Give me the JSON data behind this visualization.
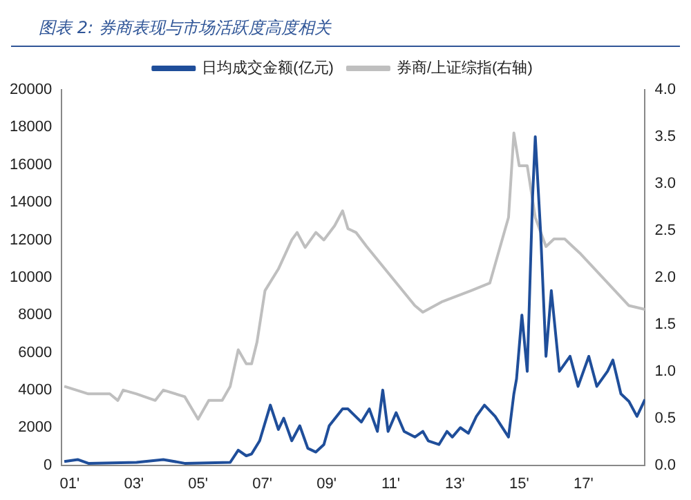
{
  "chart_data": {
    "type": "line",
    "title": "图表 2: 券商表现与市场活跃度高度相关",
    "legend": "top",
    "grid": false,
    "marker": "none",
    "line_style": "solid",
    "xlim": [
      "2000-10",
      "2018-12"
    ],
    "xticks": [
      {
        "value": "2001",
        "label": "01'"
      },
      {
        "value": "2003",
        "label": "03'"
      },
      {
        "value": "2005",
        "label": "05'"
      },
      {
        "value": "2007",
        "label": "07'"
      },
      {
        "value": "2009",
        "label": "09'"
      },
      {
        "value": "2011",
        "label": "11'"
      },
      {
        "value": "2013",
        "label": "13'"
      },
      {
        "value": "2015",
        "label": "15'"
      },
      {
        "value": "2017",
        "label": "17'"
      }
    ],
    "ylim": [
      0,
      20000
    ],
    "yticks": [
      0,
      2000,
      4000,
      6000,
      8000,
      10000,
      12000,
      14000,
      16000,
      18000,
      20000
    ],
    "y2lim": [
      0,
      4
    ],
    "y2ticks": [
      {
        "value": 0,
        "label": "0.0"
      },
      {
        "value": 0.5,
        "label": "0.5"
      },
      {
        "value": 1,
        "label": "1.0"
      },
      {
        "value": 1.5,
        "label": "1.5"
      },
      {
        "value": 2,
        "label": "2.0"
      },
      {
        "value": 2.5,
        "label": "2.5"
      },
      {
        "value": 3,
        "label": "3.0"
      },
      {
        "value": 3.5,
        "label": "3.5"
      },
      {
        "value": 4,
        "label": "4.0"
      }
    ],
    "series": [
      {
        "name": "日均成交金额(亿元)",
        "color": "#1f4e9a",
        "x": [
          "2000-11",
          "2001-04",
          "2001-08",
          "2003-02",
          "2003-12",
          "2004-08",
          "2006-01",
          "2006-04",
          "2006-07",
          "2006-09",
          "2006-12",
          "2007-04",
          "2007-07",
          "2007-09",
          "2007-12",
          "2008-03",
          "2008-06",
          "2008-09",
          "2008-12",
          "2009-02",
          "2009-07",
          "2009-09",
          "2010-02",
          "2010-05",
          "2010-08",
          "2010-10",
          "2010-12",
          "2011-03",
          "2011-06",
          "2011-10",
          "2012-01",
          "2012-03",
          "2012-07",
          "2012-10",
          "2012-12",
          "2013-03",
          "2013-06",
          "2013-09",
          "2013-12",
          "2014-04",
          "2014-09",
          "2014-11",
          "2014-12",
          "2015-02",
          "2015-04",
          "2015-06",
          "2015-07",
          "2015-09",
          "2015-11",
          "2016-01",
          "2016-04",
          "2016-08",
          "2016-11",
          "2017-03",
          "2017-06",
          "2017-10",
          "2017-12",
          "2018-03",
          "2018-06",
          "2018-09",
          "2018-12"
        ],
        "values": [
          200,
          300,
          100,
          150,
          300,
          100,
          150,
          800,
          500,
          600,
          1300,
          3200,
          1900,
          2500,
          1300,
          2100,
          900,
          700,
          1100,
          2100,
          3000,
          3000,
          2300,
          3000,
          1800,
          4000,
          1800,
          2800,
          1800,
          1500,
          1800,
          1300,
          1100,
          1800,
          1500,
          2000,
          1700,
          2600,
          3200,
          2600,
          1500,
          3800,
          4600,
          8000,
          5000,
          14300,
          17500,
          12400,
          5800,
          9300,
          5000,
          5800,
          4200,
          5800,
          4200,
          5000,
          5600,
          3800,
          3400,
          2600,
          3500
        ]
      },
      {
        "name": "券商/上证综指(右轴)",
        "color": "#bfbfbf",
        "axis": "y2",
        "x": [
          "2000-11",
          "2001-08",
          "2002-04",
          "2002-07",
          "2002-09",
          "2003-02",
          "2003-09",
          "2003-12",
          "2004-08",
          "2005-01",
          "2005-05",
          "2005-10",
          "2006-01",
          "2006-04",
          "2006-07",
          "2006-09",
          "2006-11",
          "2007-02",
          "2007-07",
          "2007-12",
          "2008-02",
          "2008-05",
          "2008-09",
          "2008-12",
          "2009-04",
          "2009-07",
          "2009-09",
          "2009-12",
          "2010-04",
          "2011-10",
          "2012-01",
          "2012-08",
          "2013-07",
          "2014-02",
          "2014-09",
          "2014-11",
          "2015-01",
          "2015-04",
          "2015-07",
          "2015-11",
          "2016-02",
          "2016-06",
          "2016-09",
          "2016-12",
          "2018-06",
          "2018-12"
        ],
        "values": [
          0.84,
          0.76,
          0.76,
          0.69,
          0.8,
          0.76,
          0.69,
          0.8,
          0.73,
          0.49,
          0.69,
          0.69,
          0.84,
          1.23,
          1.08,
          1.08,
          1.31,
          1.86,
          2.09,
          2.4,
          2.48,
          2.32,
          2.48,
          2.4,
          2.55,
          2.71,
          2.52,
          2.48,
          2.33,
          1.7,
          1.63,
          1.74,
          1.86,
          1.94,
          2.64,
          3.54,
          3.19,
          3.19,
          2.64,
          2.33,
          2.41,
          2.41,
          2.33,
          2.25,
          1.7,
          1.66
        ]
      }
    ]
  }
}
